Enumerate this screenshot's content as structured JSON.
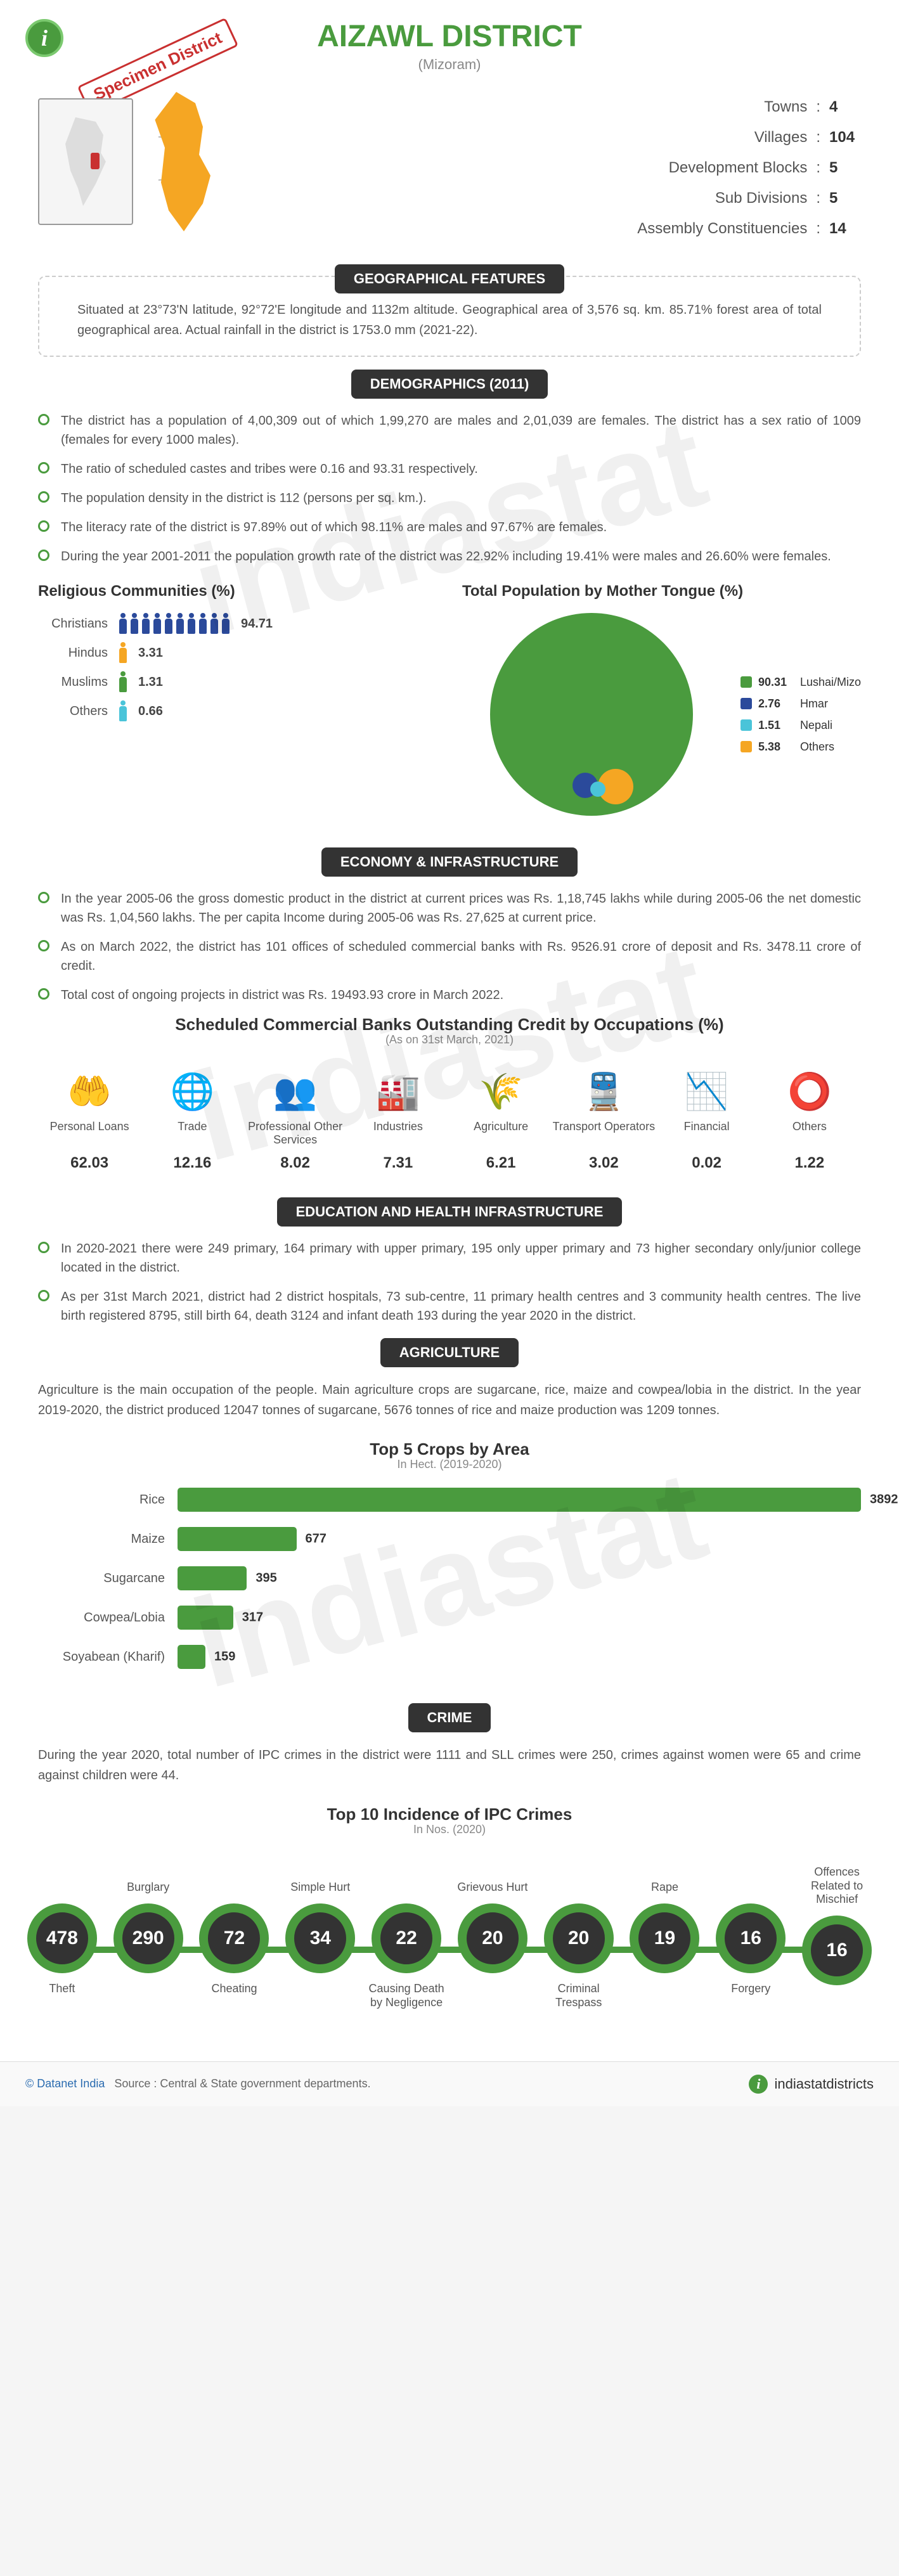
{
  "header": {
    "title": "AIZAWL DISTRICT",
    "subtitle": "(Mizoram)",
    "specimen": "Specimen District"
  },
  "stats": [
    {
      "label": "Towns",
      "value": "4"
    },
    {
      "label": "Villages",
      "value": "104"
    },
    {
      "label": "Development Blocks",
      "value": "5"
    },
    {
      "label": "Sub Divisions",
      "value": "5"
    },
    {
      "label": "Assembly Constituencies",
      "value": "14"
    }
  ],
  "sections": {
    "geo": {
      "title": "GEOGRAPHICAL FEATURES",
      "text": "Situated at 23°73'N latitude, 92°72'E longitude and 1132m altitude. Geographical area of 3,576 sq. km. 85.71% forest area of total geographical area. Actual rainfall in the district is 1753.0 mm (2021-22)."
    },
    "demo": {
      "title": "DEMOGRAPHICS (2011)",
      "bullets": [
        "The district has a population of 4,00,309 out of which 1,99,270 are males and 2,01,039 are females. The district has a sex ratio of 1009 (females for every 1000 males).",
        "The ratio of scheduled castes and tribes were 0.16 and 93.31 respectively.",
        "The population density in the district is 112 (persons per sq. km.).",
        "The literacy rate of the district is 97.89% out of which 98.11% are males and 97.67% are females.",
        "During the year 2001-2011 the population growth rate of the district was 22.92% including 19.41% were males and 26.60% were females."
      ],
      "religion_title": "Religious Communities (%)",
      "religions": [
        {
          "label": "Christians",
          "value": "94.71",
          "count": 10,
          "color": "#2b4a9b"
        },
        {
          "label": "Hindus",
          "value": "3.31",
          "count": 1,
          "color": "#f5a623"
        },
        {
          "label": "Muslims",
          "value": "1.31",
          "count": 1,
          "color": "#4a9b3e"
        },
        {
          "label": "Others",
          "value": "0.66",
          "count": 1,
          "color": "#4ac4d9"
        }
      ],
      "mother_tongue_title": "Total Population by Mother Tongue (%)",
      "mother_tongue": [
        {
          "label": "Lushai/Mizo",
          "value": "90.31",
          "color": "#4a9b3e"
        },
        {
          "label": "Hmar",
          "value": "2.76",
          "color": "#2b4a9b"
        },
        {
          "label": "Nepali",
          "value": "1.51",
          "color": "#4ac4d9"
        },
        {
          "label": "Others",
          "value": "5.38",
          "color": "#f5a623"
        }
      ]
    },
    "econ": {
      "title": "ECONOMY & INFRASTRUCTURE",
      "bullets": [
        "In the year 2005-06 the gross domestic product in the district at current prices was Rs. 1,18,745 lakhs while during 2005-06 the net domestic was Rs. 1,04,560 lakhs. The per capita Income during 2005-06 was Rs. 27,625 at current price.",
        "As on March 2022, the district has 101 offices of scheduled commercial banks with Rs. 9526.91 crore of deposit and Rs. 3478.11 crore of credit.",
        "Total cost of ongoing projects in district was Rs. 19493.93 crore in March 2022."
      ],
      "occ_title": "Scheduled Commercial Banks Outstanding Credit by Occupations (%)",
      "occ_subtitle": "(As on 31st March, 2021)",
      "occupations": [
        {
          "label": "Personal Loans",
          "value": "62.03",
          "icon": "hand"
        },
        {
          "label": "Trade",
          "value": "12.16",
          "icon": "globe"
        },
        {
          "label": "Professional Other Services",
          "value": "8.02",
          "icon": "people"
        },
        {
          "label": "Industries",
          "value": "7.31",
          "icon": "factory"
        },
        {
          "label": "Agriculture",
          "value": "6.21",
          "icon": "wheat"
        },
        {
          "label": "Transport Operators",
          "value": "3.02",
          "icon": "bridge"
        },
        {
          "label": "Financial",
          "value": "0.02",
          "icon": "graph"
        },
        {
          "label": "Others",
          "value": "1.22",
          "icon": "circle"
        }
      ]
    },
    "edu": {
      "title": "EDUCATION AND HEALTH INFRASTRUCTURE",
      "bullets": [
        "In 2020-2021 there were 249 primary, 164 primary with upper primary, 195 only upper primary and 73 higher secondary only/junior college located in the district.",
        "As per 31st March 2021, district had 2 district hospitals, 73 sub-centre, 11 primary health centres and 3 community health centres. The live birth registered 8795, still birth 64, death 3124 and infant death 193 during the year 2020 in the district."
      ]
    },
    "agri": {
      "title": "AGRICULTURE",
      "text": "Agriculture is the main occupation of the people. Main agriculture crops are sugarcane, rice, maize and cowpea/lobia in the district. In the year 2019-2020, the district produced 12047 tonnes of sugarcane, 5676 tonnes of rice and maize production was 1209 tonnes.",
      "chart_title": "Top 5 Crops by Area",
      "chart_subtitle": "In Hect. (2019-2020)",
      "max": 3892,
      "crops": [
        {
          "label": "Rice",
          "value": 3892
        },
        {
          "label": "Maize",
          "value": 677
        },
        {
          "label": "Sugarcane",
          "value": 395
        },
        {
          "label": "Cowpea/Lobia",
          "value": 317
        },
        {
          "label": "Soyabean (Kharif)",
          "value": 159
        }
      ]
    },
    "crime": {
      "title": "CRIME",
      "text": "During the year 2020, total number of IPC crimes in the district were 1111 and SLL crimes were 250, crimes against women were 65 and crime against children were 44.",
      "chart_title": "Top 10 Incidence of IPC Crimes",
      "chart_subtitle": "In Nos. (2020)",
      "crimes": [
        {
          "label": "Theft",
          "value": "478",
          "pos": "bottom"
        },
        {
          "label": "Burglary",
          "value": "290",
          "pos": "top"
        },
        {
          "label": "Cheating",
          "value": "72",
          "pos": "bottom"
        },
        {
          "label": "Simple Hurt",
          "value": "34",
          "pos": "top"
        },
        {
          "label": "Causing Death by Negligence",
          "value": "22",
          "pos": "bottom"
        },
        {
          "label": "Grievous Hurt",
          "value": "20",
          "pos": "top"
        },
        {
          "label": "Criminal Trespass",
          "value": "20",
          "pos": "bottom"
        },
        {
          "label": "Rape",
          "value": "19",
          "pos": "top"
        },
        {
          "label": "Forgery",
          "value": "16",
          "pos": "bottom"
        },
        {
          "label": "Offences Related to Mischief",
          "value": "16",
          "pos": "top"
        }
      ]
    }
  },
  "footer": {
    "copyright": "© Datanet India",
    "source": "Source : Central & State government departments.",
    "brand": "indiastatdistricts"
  },
  "icons": {
    "hand": "🤲",
    "globe": "🌐",
    "people": "👥",
    "factory": "🏭",
    "wheat": "🌾",
    "bridge": "🚆",
    "graph": "📉",
    "circle": "⭕"
  },
  "colors": {
    "primary": "#4a9b3e",
    "dark": "#333333",
    "text": "#555555"
  }
}
